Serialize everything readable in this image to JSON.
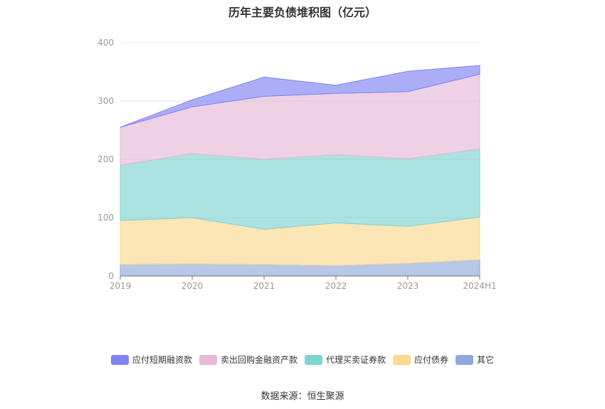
{
  "chart_data": {
    "type": "area",
    "stacked": true,
    "title": "历年主要负债堆积图（亿元）",
    "categories": [
      "2019",
      "2020",
      "2021",
      "2022",
      "2023",
      "2024H1"
    ],
    "ylim": [
      0,
      400
    ],
    "yticks": [
      0,
      100,
      200,
      300,
      400
    ],
    "grid": true,
    "legend_position": "bottom",
    "series": [
      {
        "name": "其它",
        "color": "#8fa9dc",
        "values": [
          20,
          21,
          20,
          18,
          22,
          28
        ]
      },
      {
        "name": "应付债券",
        "color": "#fbd98f",
        "values": [
          75,
          79,
          60,
          73,
          63,
          73
        ]
      },
      {
        "name": "代理买卖证券款",
        "color": "#7ed3d3",
        "values": [
          95,
          110,
          120,
          117,
          116,
          117
        ]
      },
      {
        "name": "卖出回购金融资产款",
        "color": "#e7b8d8",
        "values": [
          65,
          80,
          108,
          105,
          115,
          128
        ]
      },
      {
        "name": "应付短期融资款",
        "color": "#7e82f2",
        "values": [
          0,
          12,
          33,
          14,
          35,
          15
        ]
      }
    ]
  },
  "legend_order": [
    "应付短期融资款",
    "卖出回购金融资产款",
    "代理买卖证券款",
    "应付债券",
    "其它"
  ],
  "source": "数据来源：恒生聚源"
}
